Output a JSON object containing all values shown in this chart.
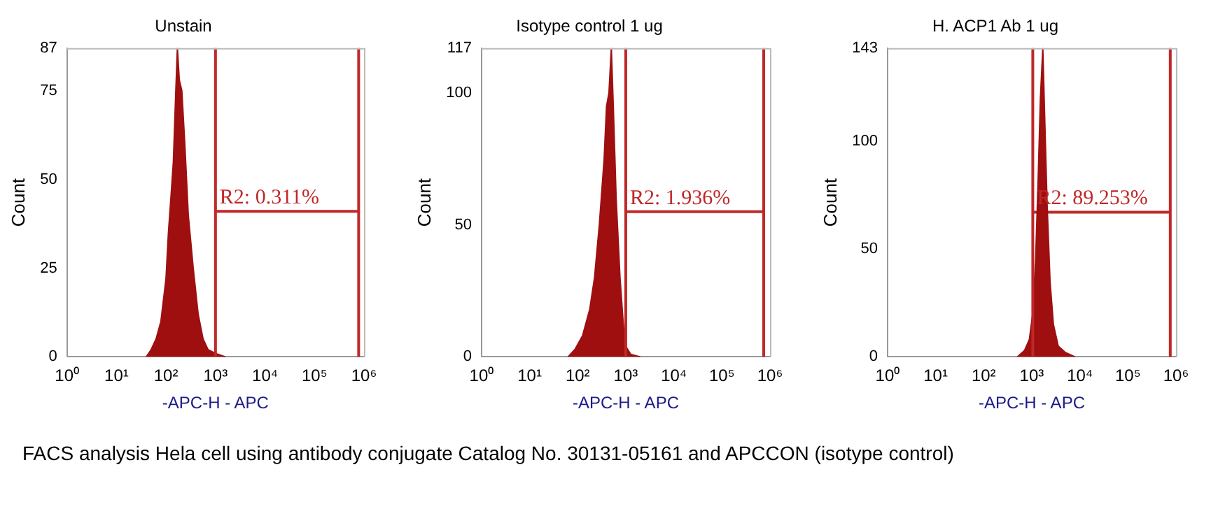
{
  "chart_data": [
    {
      "type": "area",
      "title": "Unstain",
      "xlabel": "-APC-H - APC",
      "ylabel": "Count",
      "log": "x",
      "grid": false,
      "legend": false,
      "marker": "none",
      "xlim": [
        1,
        1000000
      ],
      "xticks": [
        {
          "value": 1,
          "label": "10⁰"
        },
        {
          "value": 10,
          "label": "10¹"
        },
        {
          "value": 100,
          "label": "10²"
        },
        {
          "value": 1000,
          "label": "10³"
        },
        {
          "value": 10000,
          "label": "10⁴"
        },
        {
          "value": 100000,
          "label": "10⁵"
        },
        {
          "value": 1000000,
          "label": "10⁶"
        }
      ],
      "ylim": [
        0,
        87
      ],
      "yticks": [
        0,
        25,
        50,
        75,
        87
      ],
      "series": [
        {
          "color": "#a00f0f",
          "x": [
            40,
            50,
            63,
            79,
            100,
            112,
            126,
            141,
            158,
            170,
            186,
            209,
            240,
            282,
            355,
            447,
            562,
            708,
            1000,
            1585
          ],
          "values": [
            0,
            2,
            5,
            10,
            22,
            35,
            45,
            55,
            75,
            87,
            78,
            75,
            60,
            40,
            25,
            12,
            5,
            2,
            1,
            0
          ]
        },
        {
          "type": "line",
          "color": "#c02828",
          "x": [
            1000,
            780000
          ],
          "values": [
            41,
            41
          ]
        }
      ],
      "ref_lines": [
        {
          "axis": "x",
          "value": 1000,
          "color": "#c02828"
        },
        {
          "axis": "x",
          "value": 780000,
          "color": "#c02828"
        }
      ],
      "annotations": [
        "R2: 0.311%",
        "FACS analysis Hela cell using antibody conjugate Catalog No. 30131-05161 and APCCON (isotype control)"
      ]
    },
    {
      "type": "area",
      "title": "Isotype control 1 ug",
      "xlabel": "-APC-H - APC",
      "ylabel": "Count",
      "log": "x",
      "grid": false,
      "legend": false,
      "marker": "none",
      "xlim": [
        1,
        1000000
      ],
      "xticks": [
        {
          "value": 1,
          "label": "10⁰"
        },
        {
          "value": 10,
          "label": "10¹"
        },
        {
          "value": 100,
          "label": "10²"
        },
        {
          "value": 1000,
          "label": "10³"
        },
        {
          "value": 10000,
          "label": "10⁴"
        },
        {
          "value": 100000,
          "label": "10⁵"
        },
        {
          "value": 1000000,
          "label": "10⁶"
        }
      ],
      "ylim": [
        0,
        117
      ],
      "yticks": [
        0,
        50,
        100,
        117
      ],
      "series": [
        {
          "color": "#a00f0f",
          "x": [
            63,
            89,
            126,
            178,
            224,
            282,
            355,
            398,
            447,
            501,
            550,
            631,
            759,
            891,
            1000,
            1259,
            1995
          ],
          "values": [
            0,
            3,
            8,
            18,
            30,
            50,
            75,
            95,
            100,
            117,
            95,
            60,
            30,
            12,
            4,
            1,
            0
          ]
        },
        {
          "type": "line",
          "color": "#c02828",
          "x": [
            1000,
            740000
          ],
          "values": [
            55,
            55
          ]
        }
      ],
      "ref_lines": [
        {
          "axis": "x",
          "value": 1000,
          "color": "#c02828"
        },
        {
          "axis": "x",
          "value": 740000,
          "color": "#c02828"
        }
      ],
      "annotations": [
        "R2: 1.936%"
      ]
    },
    {
      "type": "area",
      "title": "H. ACP1 Ab 1 ug",
      "xlabel": "-APC-H - APC",
      "ylabel": "Count",
      "log": "x",
      "grid": false,
      "legend": false,
      "marker": "none",
      "xlim": [
        1,
        1000000
      ],
      "xticks": [
        {
          "value": 1,
          "label": "10⁰"
        },
        {
          "value": 10,
          "label": "10¹"
        },
        {
          "value": 100,
          "label": "10²"
        },
        {
          "value": 1000,
          "label": "10³"
        },
        {
          "value": 10000,
          "label": "10⁴"
        },
        {
          "value": 100000,
          "label": "10⁵"
        },
        {
          "value": 1000000,
          "label": "10⁶"
        }
      ],
      "ylim": [
        0,
        143
      ],
      "yticks": [
        0,
        50,
        100,
        143
      ],
      "series": [
        {
          "color": "#a00f0f",
          "x": [
            501,
            708,
            891,
            1047,
            1202,
            1349,
            1514,
            1698,
            1862,
            2089,
            2399,
            2818,
            3548,
            5012,
            7943
          ],
          "values": [
            0,
            3,
            8,
            20,
            45,
            80,
            120,
            143,
            110,
            70,
            35,
            15,
            5,
            2,
            0
          ]
        },
        {
          "type": "line",
          "color": "#c02828",
          "x": [
            1050,
            760000
          ],
          "values": [
            67,
            67
          ]
        }
      ],
      "ref_lines": [
        {
          "axis": "x",
          "value": 1050,
          "color": "#c02828"
        },
        {
          "axis": "x",
          "value": 760000,
          "color": "#c02828"
        }
      ],
      "annotations": [
        "R2: 89.253%"
      ]
    }
  ]
}
